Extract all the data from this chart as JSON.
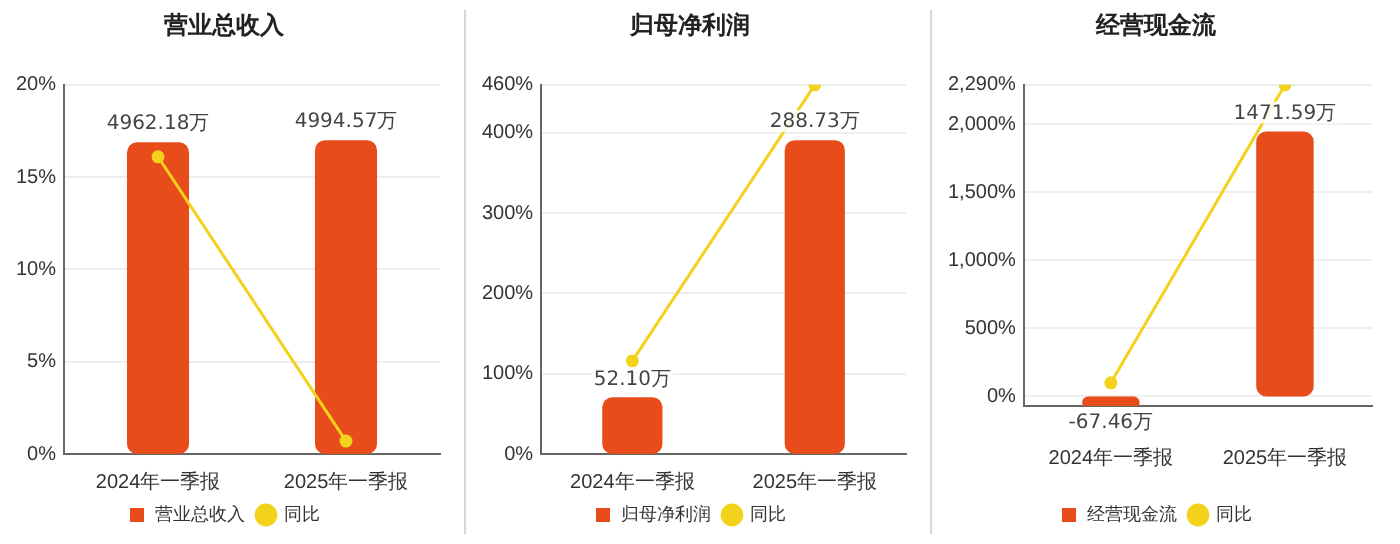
{
  "chart_data": [
    {
      "type": "bar",
      "title": "营业总收入",
      "categories": [
        "2024年一季报",
        "2025年一季报"
      ],
      "series": [
        {
          "name": "营业总收入",
          "axis": "y2",
          "color": "#e84c1a",
          "values": [
            4962.18,
            4994.57
          ],
          "value_labels": [
            "4962.18万",
            "4994.57万"
          ]
        },
        {
          "name": "同比",
          "type": "line",
          "color": "#f2d21b",
          "values": [
            16.1,
            0.7
          ]
        }
      ],
      "ylim": [
        0,
        20
      ],
      "yticks": [
        {
          "value": 0,
          "label": "0%"
        },
        {
          "value": 5,
          "label": "5%"
        },
        {
          "value": 10,
          "label": "10%"
        },
        {
          "value": 15,
          "label": "15%"
        },
        {
          "value": 20,
          "label": "20%"
        }
      ],
      "grid": "y",
      "legend": "bottom",
      "marker": "circle"
    },
    {
      "type": "bar",
      "title": "归母净利润",
      "categories": [
        "2024年一季报",
        "2025年一季报"
      ],
      "series": [
        {
          "name": "归母净利润",
          "axis": "y2",
          "color": "#e84c1a",
          "values": [
            52.1,
            288.73
          ],
          "value_labels": [
            "52.10万",
            "288.73万"
          ]
        },
        {
          "name": "同比",
          "type": "line",
          "color": "#f2d21b",
          "values": [
            116,
            460
          ]
        }
      ],
      "ylim": [
        0,
        460
      ],
      "yticks": [
        {
          "value": 0,
          "label": "0%"
        },
        {
          "value": 100,
          "label": "100%"
        },
        {
          "value": 200,
          "label": "200%"
        },
        {
          "value": 300,
          "label": "300%"
        },
        {
          "value": 400,
          "label": "400%"
        },
        {
          "value": 460,
          "label": "460%"
        }
      ],
      "grid": "y",
      "legend": "bottom",
      "marker": "circle"
    },
    {
      "type": "bar",
      "title": "经营现金流",
      "categories": [
        "2024年一季报",
        "2025年一季报"
      ],
      "series": [
        {
          "name": "经营现金流",
          "axis": "y2",
          "color": "#e84c1a",
          "values": [
            -67.46,
            1471.59
          ],
          "value_labels": [
            "-67.46万",
            "1471.59万"
          ]
        },
        {
          "name": "同比",
          "type": "line",
          "color": "#f2d21b",
          "values": [
            100,
            2290
          ]
        }
      ],
      "ylim": [
        -70,
        2290
      ],
      "yticks": [
        {
          "value": 0,
          "label": "0%"
        },
        {
          "value": 500,
          "label": "500%"
        },
        {
          "value": 1000,
          "label": "1,000%"
        },
        {
          "value": 1500,
          "label": "1,500%"
        },
        {
          "value": 2000,
          "label": "2,000%"
        },
        {
          "value": 2290,
          "label": "2,290%"
        }
      ],
      "grid": "y",
      "legend": "bottom",
      "marker": "circle"
    }
  ]
}
